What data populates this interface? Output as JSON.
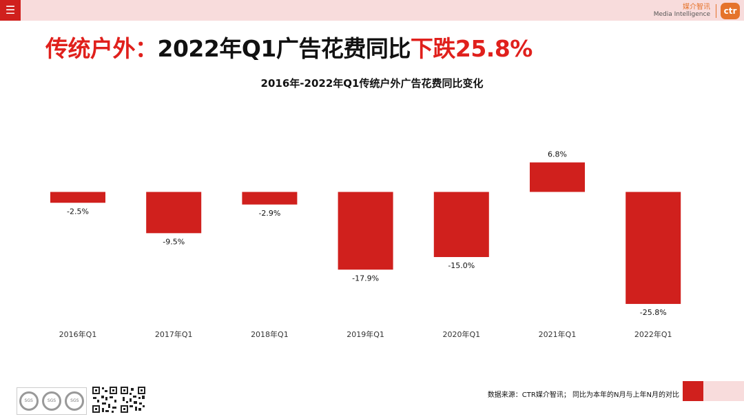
{
  "header": {
    "menu_icon": "hamburger-menu-icon",
    "brand_cn": "媒介智讯",
    "brand_en": "Media Intelligence",
    "brand_logo_text": "ctr"
  },
  "headline": {
    "part1": "传统户外：",
    "part2": "2022年Q1广告花费同比",
    "part3": "下跌25.8%"
  },
  "colors": {
    "accent": "#d0201d",
    "pink": "#f8dcdc",
    "brand_orange": "#e5732b"
  },
  "chart_data": {
    "type": "bar",
    "title": "2016年-2022年Q1传统户外广告花费同比变化",
    "categories": [
      "2016年Q1",
      "2017年Q1",
      "2018年Q1",
      "2019年Q1",
      "2020年Q1",
      "2021年Q1",
      "2022年Q1"
    ],
    "values": [
      -2.5,
      -9.5,
      -2.9,
      -17.9,
      -15.0,
      6.8,
      -25.8
    ],
    "labels": [
      "-2.5%",
      "-9.5%",
      "-2.9%",
      "-17.9%",
      "-15.0%",
      "6.8%",
      "-25.8%"
    ],
    "unit": "%",
    "bar_color": "#d0201d"
  },
  "footer": {
    "note": "数据来源：CTR媒介智讯；  同比为本年的N月与上年N月的对比",
    "badge_text": "SGS"
  }
}
